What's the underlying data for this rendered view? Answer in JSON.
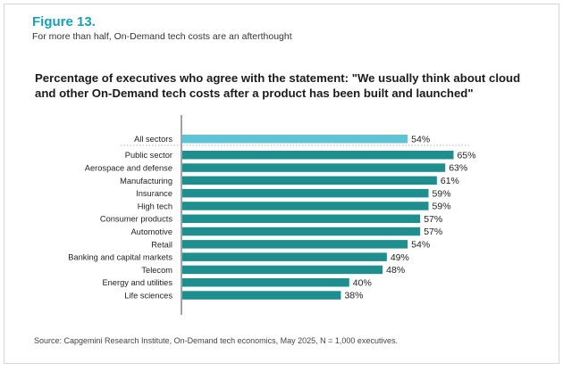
{
  "figure": {
    "label": "Figure 13.",
    "subtitle": "For more than half, On-Demand tech costs are an afterthought"
  },
  "chart_data": {
    "type": "bar",
    "orientation": "horizontal",
    "title": "Percentage of executives who agree with the statement: \"We usually think about cloud and other On-Demand tech costs after a product has been built and launched\"",
    "categories": [
      "All sectors",
      "Public sector",
      "Aerospace and defense",
      "Manufacturing",
      "Insurance",
      "High tech",
      "Consumer products",
      "Automotive",
      "Retail",
      "Banking and capital markets",
      "Telecom",
      "Energy and utilities",
      "Life sciences"
    ],
    "values": [
      54,
      65,
      63,
      61,
      59,
      59,
      57,
      57,
      54,
      49,
      48,
      40,
      38
    ],
    "value_labels": [
      "54%",
      "65%",
      "63%",
      "61%",
      "59%",
      "59%",
      "57%",
      "57%",
      "54%",
      "49%",
      "48%",
      "40%",
      "38%"
    ],
    "highlight_index": 0,
    "colors": {
      "highlight": "#5fc3d6",
      "default": "#1f8e8e",
      "axis": "#444444"
    }
  },
  "source": "Source: Capgemini Research Institute, On-Demand tech economics, May 2025, N = 1,000 executives."
}
